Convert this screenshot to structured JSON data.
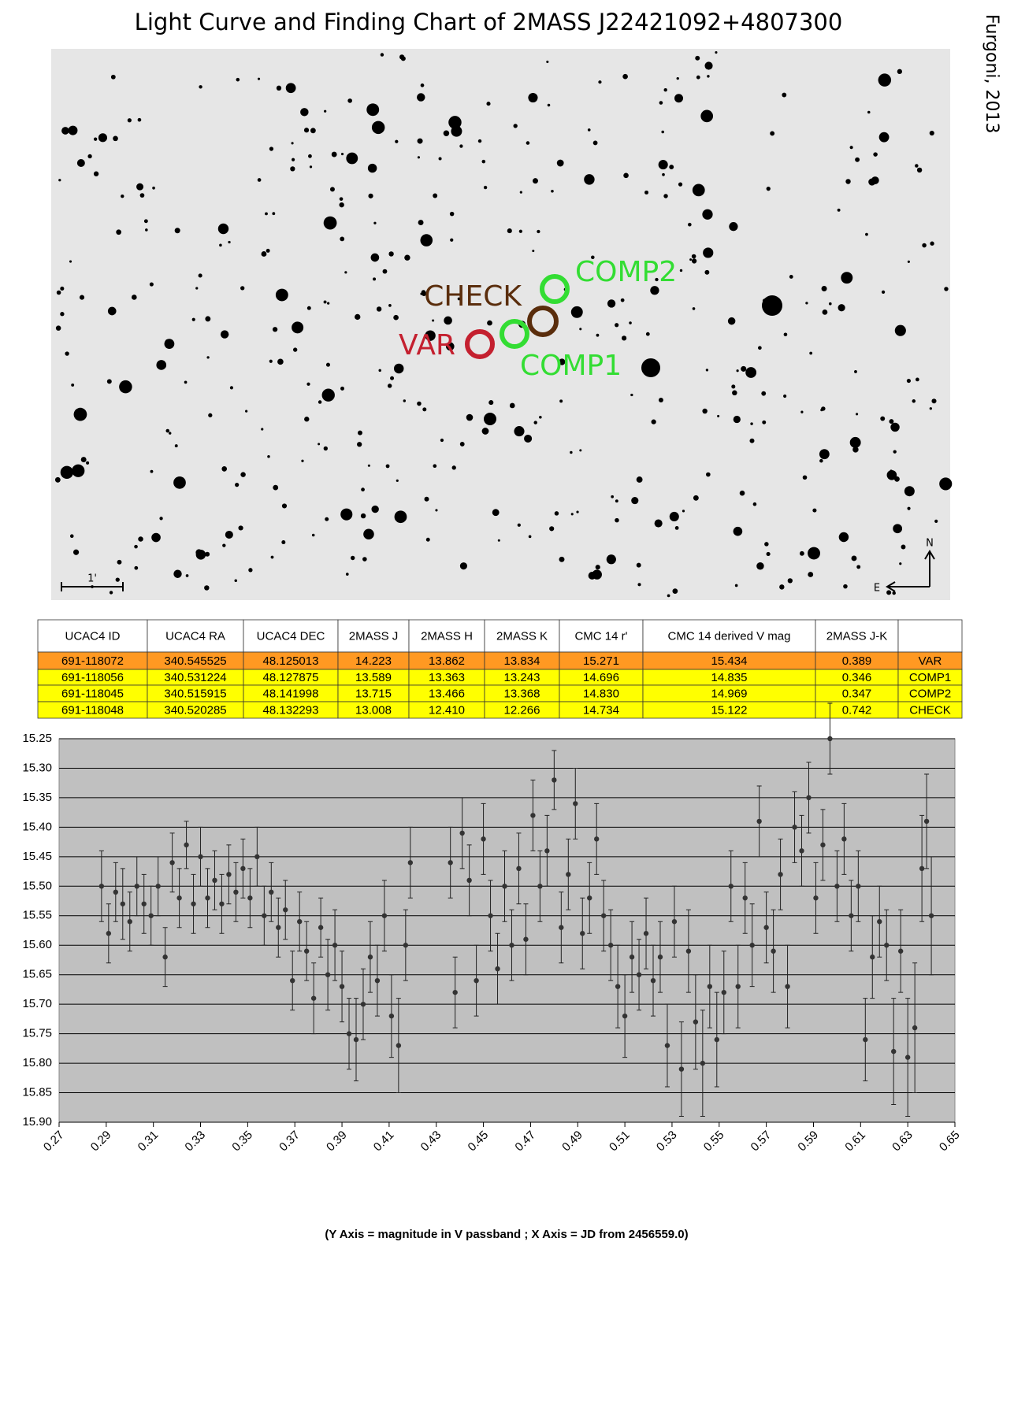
{
  "title": "Light Curve and Finding Chart of 2MASS J22421092+4807300",
  "author": "Furgoni, 2013",
  "finding_chart": {
    "labels": {
      "var": "VAR",
      "comp1": "COMP1",
      "comp2": "COMP2",
      "check": "CHECK"
    },
    "scale": "1'",
    "north": "N",
    "east": "E"
  },
  "table": {
    "header": [
      "UCAC4 ID",
      "UCAC4 RA",
      "UCAC4 DEC",
      "2MASS J",
      "2MASS H",
      "2MASS K",
      "CMC 14 r'",
      "CMC 14 derived V mag",
      "2MASS J-K",
      ""
    ],
    "rows": [
      [
        "691-118072",
        "340.545525",
        "48.125013",
        "14.223",
        "13.862",
        "13.834",
        "15.271",
        "15.434",
        "0.389",
        "VAR"
      ],
      [
        "691-118056",
        "340.531224",
        "48.127875",
        "13.589",
        "13.363",
        "13.243",
        "14.696",
        "14.835",
        "0.346",
        "COMP1"
      ],
      [
        "691-118045",
        "340.515915",
        "48.141998",
        "13.715",
        "13.466",
        "13.368",
        "14.830",
        "14.969",
        "0.347",
        "COMP2"
      ],
      [
        "691-118048",
        "340.520285",
        "48.132293",
        "13.008",
        "12.410",
        "12.266",
        "14.734",
        "15.122",
        "0.742",
        "CHECK"
      ]
    ]
  },
  "chart_data": {
    "type": "scatter",
    "x_label": "(Y Axis = magnitude in V passband ; X Axis = JD from 2456559.0)",
    "color": "#333333",
    "grid": true,
    "x": [
      0.288,
      0.291,
      0.294,
      0.297,
      0.3,
      0.303,
      0.306,
      0.309,
      0.312,
      0.315,
      0.318,
      0.321,
      0.324,
      0.327,
      0.33,
      0.333,
      0.336,
      0.339,
      0.342,
      0.345,
      0.348,
      0.351,
      0.354,
      0.357,
      0.36,
      0.363,
      0.366,
      0.369,
      0.372,
      0.375,
      0.378,
      0.381,
      0.384,
      0.387,
      0.39,
      0.393,
      0.396,
      0.399,
      0.402,
      0.405,
      0.408,
      0.411,
      0.414,
      0.417,
      0.419,
      0.436,
      0.438,
      0.441,
      0.444,
      0.447,
      0.45,
      0.453,
      0.456,
      0.459,
      0.462,
      0.465,
      0.468,
      0.471,
      0.474,
      0.477,
      0.48,
      0.483,
      0.486,
      0.489,
      0.492,
      0.495,
      0.498,
      0.501,
      0.504,
      0.507,
      0.51,
      0.513,
      0.516,
      0.519,
      0.522,
      0.525,
      0.528,
      0.531,
      0.534,
      0.537,
      0.54,
      0.543,
      0.546,
      0.549,
      0.552,
      0.555,
      0.558,
      0.561,
      0.564,
      0.567,
      0.57,
      0.573,
      0.576,
      0.579,
      0.582,
      0.585,
      0.588,
      0.591,
      0.594,
      0.597,
      0.6,
      0.603,
      0.606,
      0.609,
      0.612,
      0.615,
      0.618,
      0.621,
      0.624,
      0.627,
      0.63,
      0.633,
      0.636,
      0.638,
      0.64
    ],
    "values": [
      15.5,
      15.58,
      15.51,
      15.53,
      15.56,
      15.5,
      15.53,
      15.55,
      15.5,
      15.62,
      15.46,
      15.52,
      15.43,
      15.53,
      15.45,
      15.52,
      15.49,
      15.53,
      15.48,
      15.51,
      15.47,
      15.52,
      15.45,
      15.55,
      15.51,
      15.57,
      15.54,
      15.66,
      15.56,
      15.61,
      15.69,
      15.57,
      15.65,
      15.6,
      15.67,
      15.75,
      15.76,
      15.7,
      15.62,
      15.66,
      15.55,
      15.72,
      15.77,
      15.6,
      15.46,
      15.46,
      15.68,
      15.41,
      15.49,
      15.66,
      15.42,
      15.55,
      15.64,
      15.5,
      15.6,
      15.47,
      15.59,
      15.38,
      15.5,
      15.44,
      15.32,
      15.57,
      15.48,
      15.36,
      15.58,
      15.52,
      15.42,
      15.55,
      15.6,
      15.67,
      15.72,
      15.62,
      15.65,
      15.58,
      15.66,
      15.62,
      15.77,
      15.56,
      15.81,
      15.61,
      15.73,
      15.8,
      15.67,
      15.76,
      15.68,
      15.5,
      15.67,
      15.52,
      15.6,
      15.39,
      15.57,
      15.61,
      15.48,
      15.67,
      15.4,
      15.44,
      15.35,
      15.52,
      15.43,
      15.25,
      15.5,
      15.42,
      15.55,
      15.5,
      15.76,
      15.62,
      15.56,
      15.6,
      15.78,
      15.61,
      15.79,
      15.74,
      15.47,
      15.39,
      15.55
    ],
    "errors": [
      0.06,
      0.05,
      0.05,
      0.06,
      0.05,
      0.05,
      0.05,
      0.05,
      0.05,
      0.05,
      0.05,
      0.05,
      0.04,
      0.05,
      0.05,
      0.05,
      0.05,
      0.05,
      0.05,
      0.05,
      0.05,
      0.05,
      0.05,
      0.05,
      0.05,
      0.05,
      0.05,
      0.05,
      0.05,
      0.05,
      0.06,
      0.05,
      0.06,
      0.06,
      0.06,
      0.06,
      0.07,
      0.06,
      0.06,
      0.06,
      0.06,
      0.07,
      0.08,
      0.06,
      0.06,
      0.06,
      0.06,
      0.06,
      0.06,
      0.06,
      0.06,
      0.06,
      0.06,
      0.06,
      0.06,
      0.06,
      0.06,
      0.06,
      0.06,
      0.06,
      0.05,
      0.06,
      0.06,
      0.06,
      0.06,
      0.06,
      0.06,
      0.06,
      0.06,
      0.07,
      0.07,
      0.06,
      0.06,
      0.06,
      0.06,
      0.06,
      0.07,
      0.06,
      0.08,
      0.07,
      0.08,
      0.09,
      0.07,
      0.08,
      0.07,
      0.06,
      0.07,
      0.06,
      0.07,
      0.06,
      0.06,
      0.07,
      0.06,
      0.07,
      0.06,
      0.06,
      0.06,
      0.06,
      0.06,
      0.06,
      0.06,
      0.06,
      0.06,
      0.06,
      0.07,
      0.07,
      0.06,
      0.06,
      0.09,
      0.07,
      0.1,
      0.11,
      0.09,
      0.08,
      0.1
    ],
    "xlim": [
      0.27,
      0.65
    ],
    "xticks": [
      0.27,
      0.29,
      0.31,
      0.33,
      0.35,
      0.37,
      0.39,
      0.41,
      0.43,
      0.45,
      0.47,
      0.49,
      0.51,
      0.53,
      0.55,
      0.57,
      0.59,
      0.61,
      0.63,
      0.65
    ],
    "ylim": [
      15.9,
      15.25
    ],
    "yticks": [
      15.25,
      {
        "value": 15.3,
        "label": "15.30"
      },
      15.35,
      {
        "value": 15.4,
        "label": "15.40"
      },
      15.45,
      {
        "value": 15.5,
        "label": "15.50"
      },
      15.55,
      {
        "value": 15.6,
        "label": "15.60"
      },
      15.65,
      {
        "value": 15.7,
        "label": "15.70"
      },
      15.75,
      {
        "value": 15.8,
        "label": "15.80"
      },
      15.85,
      {
        "value": 15.9,
        "label": "15.90"
      }
    ]
  }
}
